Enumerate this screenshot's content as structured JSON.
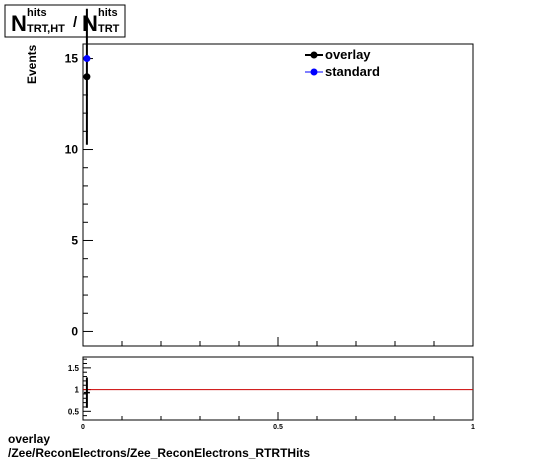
{
  "title": {
    "main_a": "N",
    "sup_a": "hits",
    "sub_a": "TRT,HT",
    "slash": "/",
    "main_b": "N",
    "sup_b": "hits",
    "sub_b": "TRT"
  },
  "footer": {
    "line1": "overlay",
    "line2": "/Zee/ReconElectrons/Zee_ReconElectrons_RTRTHits"
  },
  "colors": {
    "overlay": "#000000",
    "standard": "#0000ff",
    "ratio_line": "#cc0000"
  },
  "chart_data": [
    {
      "type": "scatter",
      "title": "",
      "xlabel": "",
      "ylabel": "Events",
      "xlim": [
        0,
        1
      ],
      "ylim": [
        -0.8,
        15.8
      ],
      "x_ticks": [
        "0",
        "0.5",
        "1"
      ],
      "y_ticks": [
        "0",
        "5",
        "10",
        "15"
      ],
      "grid": false,
      "legend": {
        "position": "top-right",
        "entries": [
          "overlay",
          "standard"
        ]
      },
      "series": [
        {
          "name": "overlay",
          "x": [
            0.01
          ],
          "y": [
            14
          ],
          "yerr": [
            3.74
          ]
        },
        {
          "name": "standard",
          "x": [
            0.01
          ],
          "y": [
            15
          ],
          "yerr": [
            0
          ]
        }
      ]
    },
    {
      "type": "line",
      "title": "",
      "xlabel": "",
      "x_ticks": [
        "0",
        "0.5",
        "1"
      ],
      "y_ticks": [
        "0.5",
        "1",
        "1.5"
      ],
      "xlim": [
        0,
        1
      ],
      "ylim": [
        0.3,
        1.75
      ],
      "reference_line": 1,
      "points": [
        {
          "x": 0.01,
          "y": 0.93,
          "yerr": 0.35
        }
      ]
    }
  ]
}
